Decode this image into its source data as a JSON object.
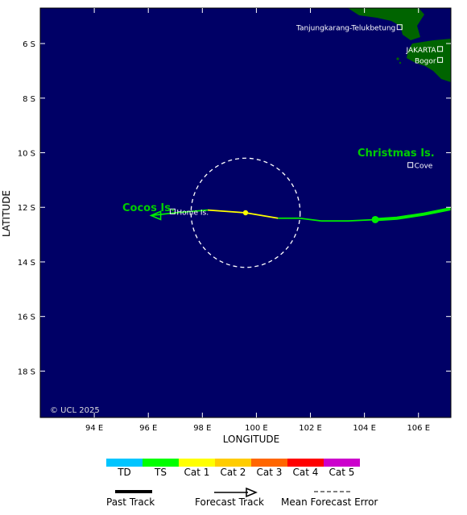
{
  "map": {
    "credit": "© UCL 2025",
    "colors": {
      "ocean": "#000066",
      "land": "#006400",
      "grid": "#ffffff",
      "track_ts": "#00ee00",
      "track_cat1": "#ffff00",
      "place_text": "#ffffff",
      "island_text": "#00cc00"
    },
    "axes": {
      "xlabel": "LONGITUDE",
      "ylabel": "LATITUDE",
      "lon_ticks": [
        "94 E",
        "96 E",
        "98 E",
        "100 E",
        "102 E",
        "104 E",
        "106 E"
      ],
      "lat_ticks": [
        "6 S",
        "8 S",
        "10 S",
        "12 S",
        "14 S",
        "16 S",
        "18 S"
      ],
      "lon_range": [
        92.0,
        107.2
      ],
      "lat_range": [
        4.7,
        19.7
      ]
    },
    "places": [
      {
        "name": "Tanjungkarang-Telukbetung",
        "lon": 105.3,
        "lat": 5.4
      },
      {
        "name": "JAKARTA",
        "lon": 106.8,
        "lat": 6.2
      },
      {
        "name": "Bogor",
        "lon": 106.8,
        "lat": 6.6
      },
      {
        "name": "Cove",
        "lon": 105.7,
        "lat": 10.45
      },
      {
        "name": "Home Is.",
        "lon": 96.9,
        "lat": 12.15
      }
    ],
    "islands": [
      {
        "name": "Christmas Is."
      },
      {
        "name": "Cocos Is."
      }
    ],
    "storm": {
      "past_track": [
        [
          107.2,
          12.05
        ],
        [
          106.2,
          12.25
        ],
        [
          105.2,
          12.4
        ],
        [
          104.4,
          12.45
        ]
      ],
      "forecast_track": [
        [
          104.4,
          12.45
        ],
        [
          103.4,
          12.5
        ],
        [
          102.4,
          12.5
        ],
        [
          101.6,
          12.4
        ],
        [
          100.8,
          12.4
        ],
        [
          99.6,
          12.2
        ],
        [
          98.2,
          12.1
        ],
        [
          97.0,
          12.2
        ],
        [
          96.1,
          12.3
        ]
      ],
      "forecast_category": [
        "TS",
        "TS",
        "TS",
        "TS",
        "Cat 1",
        "Cat 1",
        "TS",
        "TS"
      ],
      "current_position": [
        104.4,
        12.45
      ],
      "forecast_point": [
        99.6,
        12.2
      ],
      "error_circle": {
        "center": [
          99.6,
          12.2
        ],
        "radius_deg_lat": 2.0
      }
    }
  },
  "intensity_scale": [
    {
      "label": "TD",
      "color": "#00c5ff"
    },
    {
      "label": "TS",
      "color": "#00ff00"
    },
    {
      "label": "Cat 1",
      "color": "#ffff00"
    },
    {
      "label": "Cat 2",
      "color": "#ffcc00"
    },
    {
      "label": "Cat 3",
      "color": "#ff6600"
    },
    {
      "label": "Cat 4",
      "color": "#ff0000"
    },
    {
      "label": "Cat 5",
      "color": "#cc00cc"
    }
  ],
  "legend": {
    "past_track": "Past Track",
    "forecast_track": "Forecast Track",
    "mean_error": "Mean Forecast Error"
  }
}
